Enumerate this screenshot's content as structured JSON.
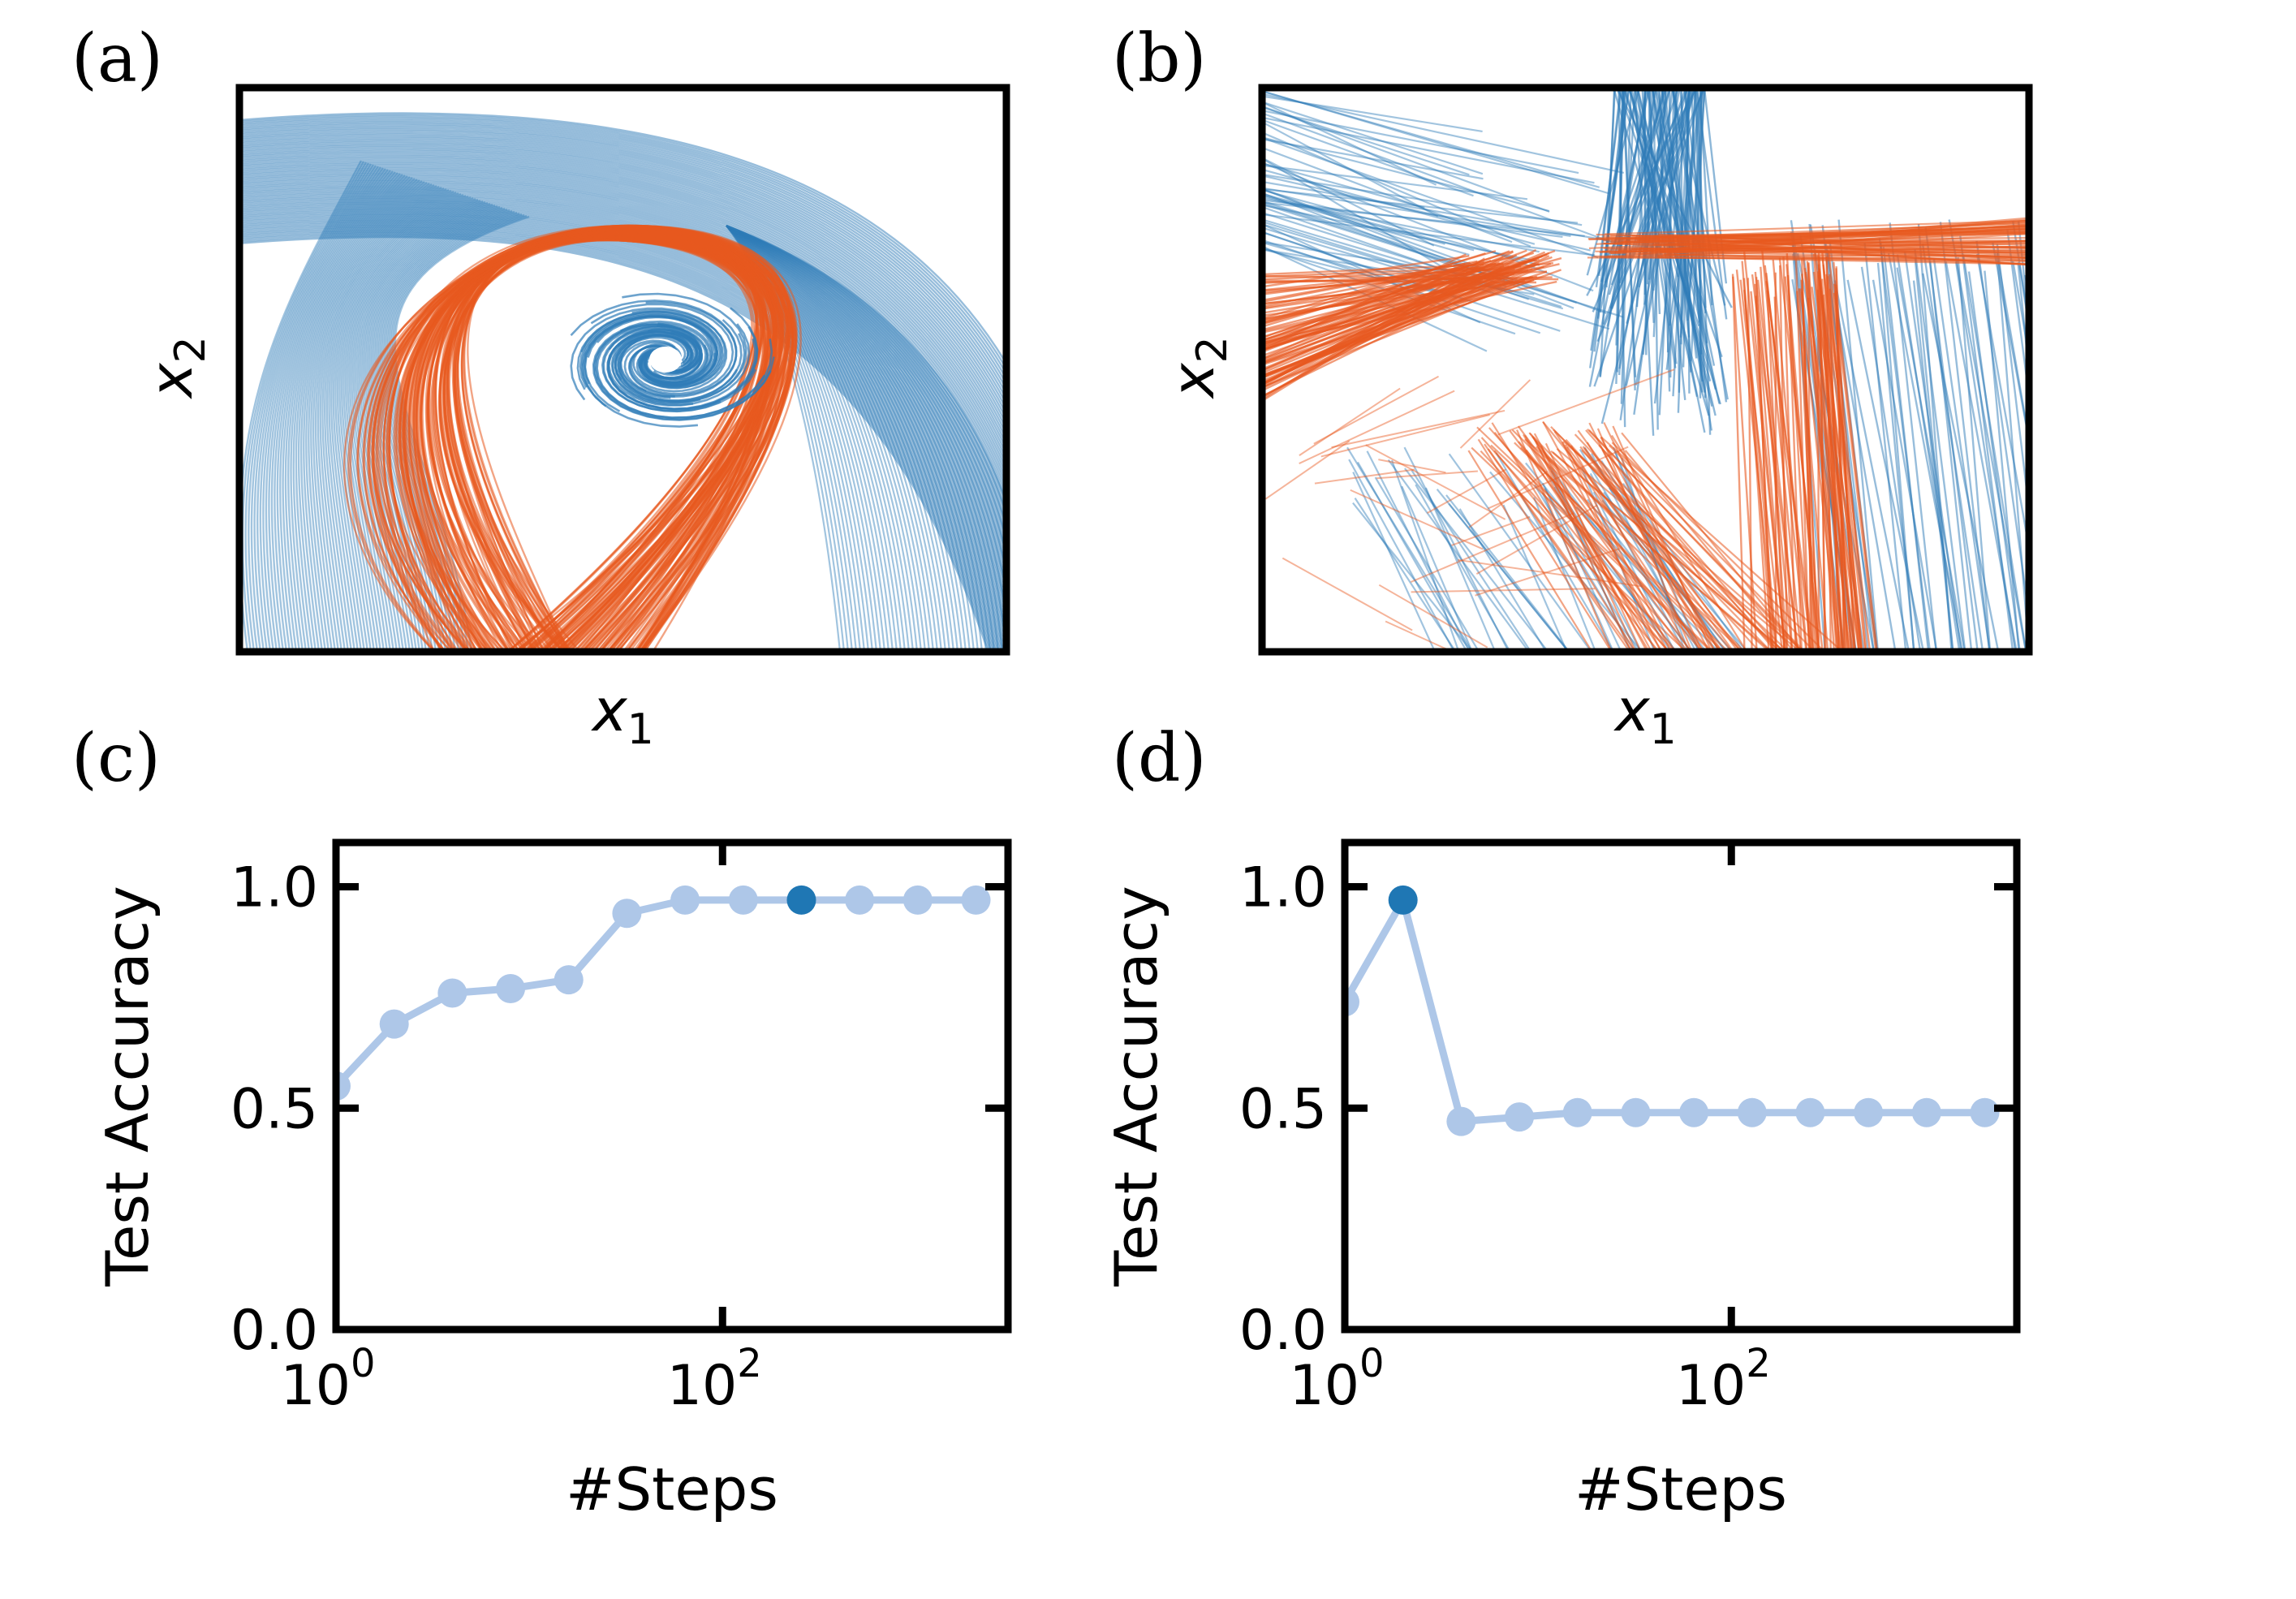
{
  "panels": [
    {
      "label": "(a)",
      "xlabel": "x",
      "xsub": "1",
      "ylabel": "x",
      "ysub": "2"
    },
    {
      "label": "(b)",
      "xlabel": "x",
      "xsub": "1",
      "ylabel": "x",
      "ysub": "2"
    },
    {
      "label": "(c)"
    },
    {
      "label": "(d)"
    }
  ],
  "colors": {
    "class_a": "#2f7cb8",
    "class_b": "#e8591f",
    "line": "#aec7e8",
    "highlight": "#1f77b4"
  },
  "chart_data": [
    {
      "type": "line",
      "panel": "(a)",
      "title": "",
      "description_series": [
        "class_a",
        "class_b"
      ],
      "xlabel": "x1",
      "ylabel": "x2"
    },
    {
      "type": "line",
      "panel": "(b)",
      "title": "",
      "xlabel": "x1",
      "ylabel": "x2"
    },
    {
      "type": "line",
      "panel": "(c)",
      "xlabel": "#Steps",
      "ylabel": "Test Accuracy",
      "xscale": "log",
      "xlim": [
        1,
        3000
      ],
      "ylim": [
        0,
        1.1
      ],
      "xticks": [
        1,
        100
      ],
      "xticklabels": [
        "10",
        "10"
      ],
      "xtickexp": [
        "0",
        "2"
      ],
      "yticks": [
        0.0,
        0.5,
        1.0
      ],
      "yticklabels": [
        "0.0",
        "0.5",
        "1.0"
      ],
      "x": [
        1,
        2,
        4,
        8,
        16,
        32,
        64,
        128,
        256,
        512,
        1024,
        2048
      ],
      "y": [
        0.55,
        0.69,
        0.76,
        0.77,
        0.79,
        0.94,
        0.97,
        0.97,
        0.97,
        0.97,
        0.97,
        0.97
      ],
      "highlight_index": 8
    },
    {
      "type": "line",
      "panel": "(d)",
      "xlabel": "#Steps",
      "ylabel": "Test Accuracy",
      "xscale": "log",
      "xlim": [
        1,
        3000
      ],
      "ylim": [
        0,
        1.1
      ],
      "xticks": [
        1,
        100
      ],
      "xticklabels": [
        "10",
        "10"
      ],
      "xtickexp": [
        "0",
        "2"
      ],
      "yticks": [
        0.0,
        0.5,
        1.0
      ],
      "yticklabels": [
        "0.0",
        "0.5",
        "1.0"
      ],
      "x": [
        1,
        2,
        4,
        8,
        16,
        32,
        64,
        128,
        256,
        512,
        1024,
        2048
      ],
      "y": [
        0.74,
        0.97,
        0.47,
        0.48,
        0.49,
        0.49,
        0.49,
        0.49,
        0.49,
        0.49,
        0.49,
        0.49
      ],
      "highlight_index": 1
    }
  ]
}
